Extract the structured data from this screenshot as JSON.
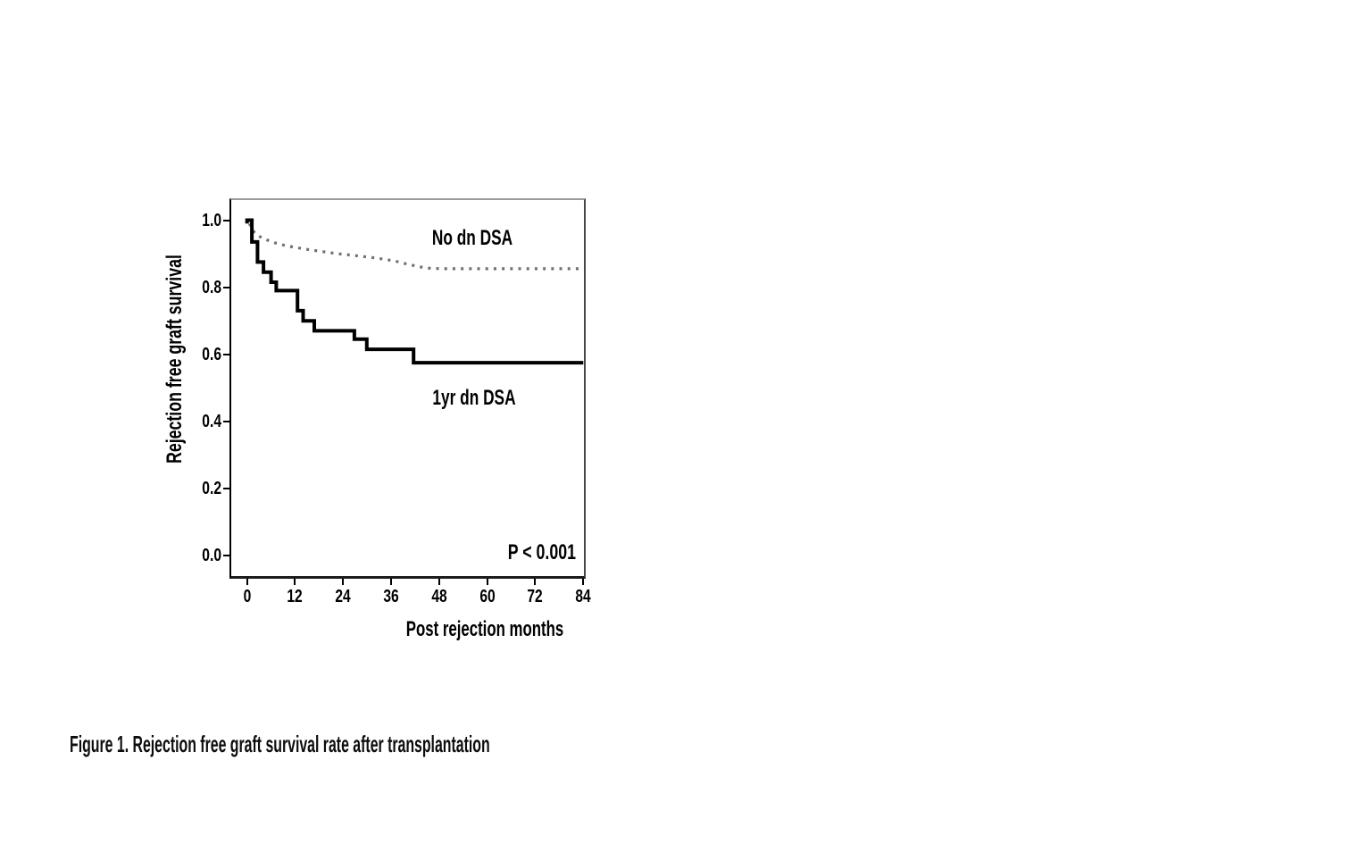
{
  "figure_caption": {
    "full": "Figure 1. Rejection free graft survival rate after transplantation"
  },
  "chart_data": {
    "type": "line",
    "subtype": "kaplan-meier-step-survival",
    "title": "",
    "xlabel": "Post rejection months",
    "ylabel": "Rejection free graft survival",
    "xlim": [
      0,
      84
    ],
    "xticks": [
      0,
      12,
      24,
      36,
      48,
      60,
      72,
      84
    ],
    "ylim": [
      0.0,
      1.0
    ],
    "yticks": [
      0.0,
      0.2,
      0.4,
      0.6,
      0.8,
      1.0
    ],
    "grid": false,
    "legend_position": "inline-annotations",
    "annotations": [
      {
        "text": "No dn DSA",
        "role": "series-label",
        "x_month": 56,
        "y_value": 0.94
      },
      {
        "text": "1yr dn DSA",
        "role": "series-label",
        "x_month": 57,
        "y_value": 0.47
      },
      {
        "text": "P < 0.001",
        "role": "p-value",
        "x_month": 80,
        "y_value": 0.02
      }
    ],
    "series": [
      {
        "name": "No dn DSA",
        "style": "dotted",
        "color": "#6e6e6e",
        "points": [
          [
            0.6,
            0.99
          ],
          [
            1.2,
            0.972
          ],
          [
            2.5,
            0.955
          ],
          [
            4.5,
            0.943
          ],
          [
            7,
            0.932
          ],
          [
            10,
            0.923
          ],
          [
            13,
            0.917
          ],
          [
            16,
            0.911
          ],
          [
            19,
            0.906
          ],
          [
            22,
            0.901
          ],
          [
            25,
            0.897
          ],
          [
            28,
            0.893
          ],
          [
            31,
            0.889
          ],
          [
            34,
            0.884
          ],
          [
            37,
            0.878
          ],
          [
            40,
            0.869
          ],
          [
            43,
            0.861
          ],
          [
            46,
            0.856
          ],
          [
            50,
            0.855
          ],
          [
            84,
            0.855
          ]
        ]
      },
      {
        "name": "1yr dn DSA",
        "style": "solid-step",
        "color": "#000000",
        "start_tick_value": 0.99,
        "steps": [
          [
            0,
            1.0
          ],
          [
            1.2,
            0.935
          ],
          [
            2.6,
            0.875
          ],
          [
            4.1,
            0.845
          ],
          [
            6.0,
            0.815
          ],
          [
            7.3,
            0.79
          ],
          [
            12.6,
            0.73
          ],
          [
            14.0,
            0.7
          ],
          [
            16.8,
            0.67
          ],
          [
            26.8,
            0.645
          ],
          [
            29.9,
            0.615
          ],
          [
            41.6,
            0.575
          ]
        ],
        "end_month": 84
      }
    ]
  }
}
